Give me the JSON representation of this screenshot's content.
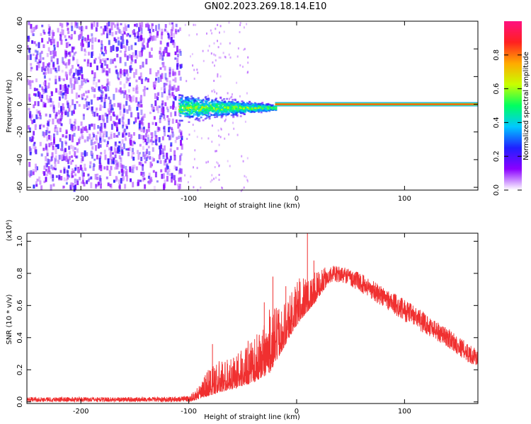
{
  "figure_title": "GN02.2023.269.18.14.E10",
  "chart_data": [
    {
      "type": "heatmap",
      "xlabel": "Height of straight line (km)",
      "ylabel": "Frequency (Hz)",
      "xlim": [
        -250,
        168
      ],
      "ylim": [
        -62,
        60
      ],
      "xticks": [
        -200,
        -100,
        0,
        100
      ],
      "yticks": [
        -60,
        -40,
        -20,
        0,
        20,
        40,
        60
      ],
      "colorbar": {
        "label": "Normalized spectral amplitude",
        "range": [
          0.0,
          1.0
        ],
        "ticks": [
          "0.0",
          "0.2",
          "0.4",
          "0.6",
          "0.8"
        ],
        "colormap": [
          "#ffffff",
          "#8b00ff",
          "#2020ff",
          "#00c8ff",
          "#00ff60",
          "#c8ff00",
          "#ffaa00",
          "#ff2020",
          "#ff1080"
        ]
      },
      "regions": [
        {
          "kind": "noise",
          "x": [
            -250,
            -105
          ],
          "freq": [
            -62,
            60
          ],
          "amplitude": [
            0.0,
            0.2
          ]
        },
        {
          "kind": "signal-cloud",
          "x": [
            -110,
            -20
          ],
          "freq_halfwidth_start": 10,
          "freq_halfwidth_end": 2,
          "amplitude": [
            0.1,
            0.6
          ]
        },
        {
          "kind": "carrier-line",
          "x": [
            -20,
            168
          ],
          "freq": 0,
          "amplitude": 1.0
        }
      ],
      "grid": false
    },
    {
      "type": "line",
      "xlabel": "Height of straight line (km)",
      "ylabel": "SNR (10 * v/v)",
      "scale_note": "(x10⁴)",
      "xlim": [
        -250,
        168
      ],
      "ylim": [
        -0.01,
        1.05
      ],
      "xticks": [
        -200,
        -100,
        0,
        100
      ],
      "yticks": [
        "0.0",
        "0.2",
        "0.4",
        "0.6",
        "0.8",
        "1.0"
      ],
      "color": "#f03030",
      "envelope": {
        "x": [
          -250,
          -120,
          -100,
          -90,
          -80,
          -60,
          -40,
          -25,
          -15,
          -5,
          5,
          15,
          30,
          45,
          60,
          80,
          100,
          120,
          140,
          160,
          168
        ],
        "low": [
          0.0,
          0.0,
          0.0,
          0.02,
          0.04,
          0.08,
          0.12,
          0.18,
          0.3,
          0.42,
          0.52,
          0.6,
          0.74,
          0.74,
          0.68,
          0.59,
          0.5,
          0.42,
          0.34,
          0.24,
          0.22
        ],
        "high": [
          0.03,
          0.03,
          0.04,
          0.1,
          0.24,
          0.28,
          0.38,
          0.58,
          0.6,
          0.7,
          0.8,
          0.8,
          0.85,
          0.84,
          0.8,
          0.72,
          0.64,
          0.55,
          0.46,
          0.36,
          0.32
        ]
      },
      "spikes": [
        {
          "x": -78,
          "y": 0.36
        },
        {
          "x": -45,
          "y": 0.38
        },
        {
          "x": -30,
          "y": 0.62
        },
        {
          "x": -22,
          "y": 0.78
        },
        {
          "x": -10,
          "y": 0.72
        },
        {
          "x": 10,
          "y": 1.07
        },
        {
          "x": 16,
          "y": 0.88
        }
      ],
      "grid": false
    }
  ]
}
